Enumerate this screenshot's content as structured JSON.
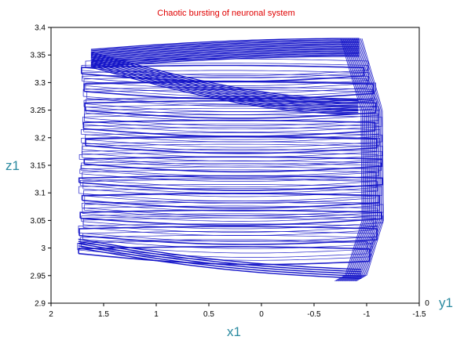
{
  "chart_data": {
    "type": "line",
    "title": "Chaotic bursting of neuronal system",
    "xlabel": "x1",
    "ylabel": "z1",
    "zlabel": "y1",
    "xlim": [
      2,
      -1.5
    ],
    "ylim": [
      2.9,
      3.4
    ],
    "x_ticks": [
      "2",
      "1.5",
      "1",
      "0.5",
      "0",
      "-0.5",
      "-1",
      "-1.5"
    ],
    "y_ticks": [
      "2.9",
      "2.95",
      "3",
      "3.05",
      "3.1",
      "3.15",
      "3.2",
      "3.25",
      "3.3",
      "3.35",
      "3.4"
    ],
    "z_tick": "0",
    "grid": false,
    "colors": {
      "title": "#e00000",
      "series": "#1414c8",
      "axis_label": "#2a8aa0"
    },
    "series": [
      {
        "x": [
          1.73,
          1.5,
          1.0,
          0.5,
          0.0,
          -0.5,
          -0.85,
          -0.95,
          -1.0,
          -1.05,
          -1.1,
          -1.12,
          -1.08,
          -1.0,
          -0.95,
          -0.93
        ],
        "y": [
          3.0,
          2.995,
          2.985,
          2.975,
          2.965,
          2.952,
          2.94,
          2.95,
          2.98,
          3.05,
          3.15,
          3.25,
          3.3,
          3.34,
          3.37,
          3.38
        ]
      },
      {
        "x": [
          -0.93,
          -0.8,
          -0.5,
          0.0,
          0.5,
          1.0,
          1.5,
          1.65
        ],
        "y": [
          3.38,
          3.38,
          3.378,
          3.375,
          3.37,
          3.365,
          3.36,
          3.355
        ]
      },
      {
        "x": [
          1.65,
          1.3,
          0.8,
          0.3,
          -0.2,
          -0.6,
          -0.85,
          -0.95
        ],
        "y": [
          3.355,
          3.34,
          3.32,
          3.3,
          3.285,
          3.275,
          3.27,
          3.28
        ]
      }
    ]
  }
}
